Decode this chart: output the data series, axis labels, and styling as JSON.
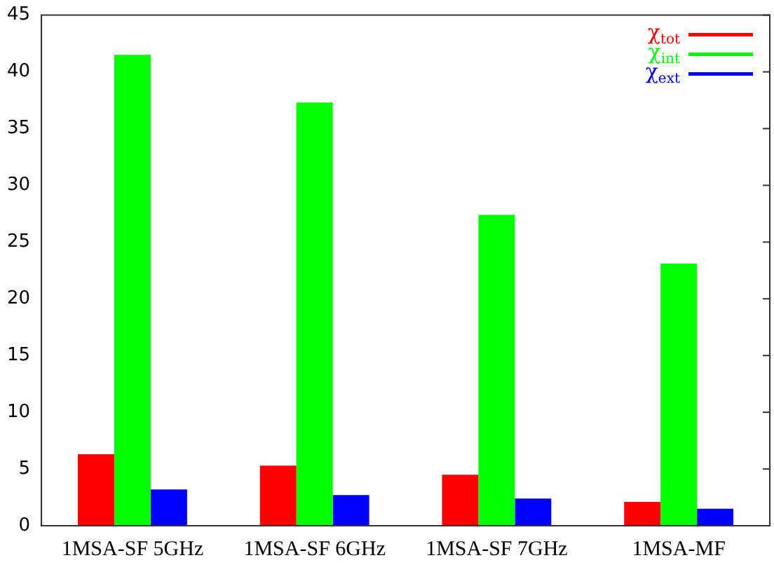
{
  "chart_data": {
    "type": "bar",
    "categories": [
      "1MSA-SF 5GHz",
      "1MSA-SF 6GHz",
      "1MSA-SF 7GHz",
      "1MSA-MF"
    ],
    "series": [
      {
        "name": "χ$_{tot}$",
        "color": "#ff0000",
        "values": [
          6.3,
          5.3,
          4.5,
          2.1
        ]
      },
      {
        "name": "χ$_{int}$",
        "color": "#00ff00",
        "values": [
          41.5,
          37.3,
          27.4,
          23.1
        ]
      },
      {
        "name": "χ$_{ext}$",
        "color": "#0000ff",
        "values": [
          3.2,
          2.7,
          2.4,
          1.5
        ]
      }
    ],
    "ylim": [
      0,
      45
    ],
    "yticks": [
      0,
      5,
      10,
      15,
      20,
      25,
      30,
      35,
      40,
      45
    ],
    "grid": false,
    "legend": "top right"
  }
}
